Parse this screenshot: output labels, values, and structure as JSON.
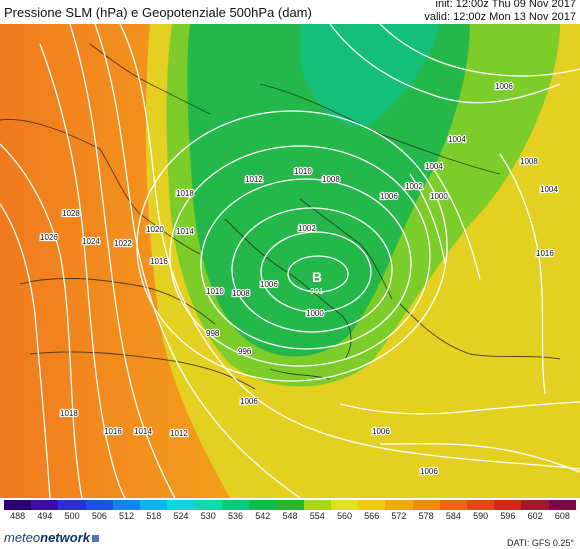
{
  "header": {
    "title": "Pressione SLM (hPa) e Geopotenziale 500hPa (dam)",
    "init": "init: 12:00z Thu 09 Nov 2017",
    "valid": "valid: 12:00z Mon 13 Nov 2017"
  },
  "map": {
    "low_center": {
      "symbol": "B",
      "value": "991"
    },
    "isobar_labels": [
      "1028",
      "1026",
      "1024",
      "1022",
      "1020",
      "1018",
      "1016",
      "1014",
      "1012",
      "1010",
      "1008",
      "1006",
      "1004",
      "1002",
      "1000",
      "998",
      "996",
      "1010",
      "1008",
      "1006",
      "1006",
      "1004",
      "1006",
      "1008",
      "1012",
      "1014",
      "1016",
      "1018",
      "1016",
      "1004",
      "1002",
      "1000",
      "1006",
      "1006"
    ]
  },
  "legend": {
    "ticks": [
      "488",
      "494",
      "500",
      "506",
      "512",
      "518",
      "524",
      "530",
      "536",
      "542",
      "548",
      "554",
      "560",
      "566",
      "572",
      "578",
      "584",
      "590",
      "596",
      "602",
      "608"
    ],
    "colors": [
      "#2a0070",
      "#3a0fa0",
      "#2a30c8",
      "#2050e0",
      "#1a80f0",
      "#14b0f0",
      "#10d4e0",
      "#10d8b0",
      "#10c880",
      "#18b850",
      "#30b030",
      "#a8d420",
      "#e0e020",
      "#f0c818",
      "#f0a818",
      "#f08818",
      "#ec6818",
      "#e04818",
      "#d02818",
      "#a01830",
      "#800848"
    ]
  },
  "footer": {
    "brand_prefix": "meteo",
    "brand_suffix": "network",
    "source": "DATI:  GFS  0.25°"
  }
}
